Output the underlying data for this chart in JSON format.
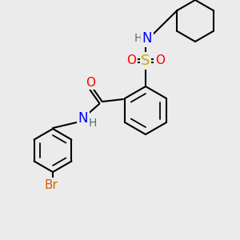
{
  "bg_color": "#ebebeb",
  "bond_color": "#000000",
  "atom_colors": {
    "N": "#0000ff",
    "O": "#ff0000",
    "S": "#ccaa00",
    "Br": "#cc6600",
    "H": "#507070",
    "C": "#000000"
  },
  "lw": 1.5,
  "figsize": [
    3.0,
    3.0
  ],
  "dpi": 100
}
